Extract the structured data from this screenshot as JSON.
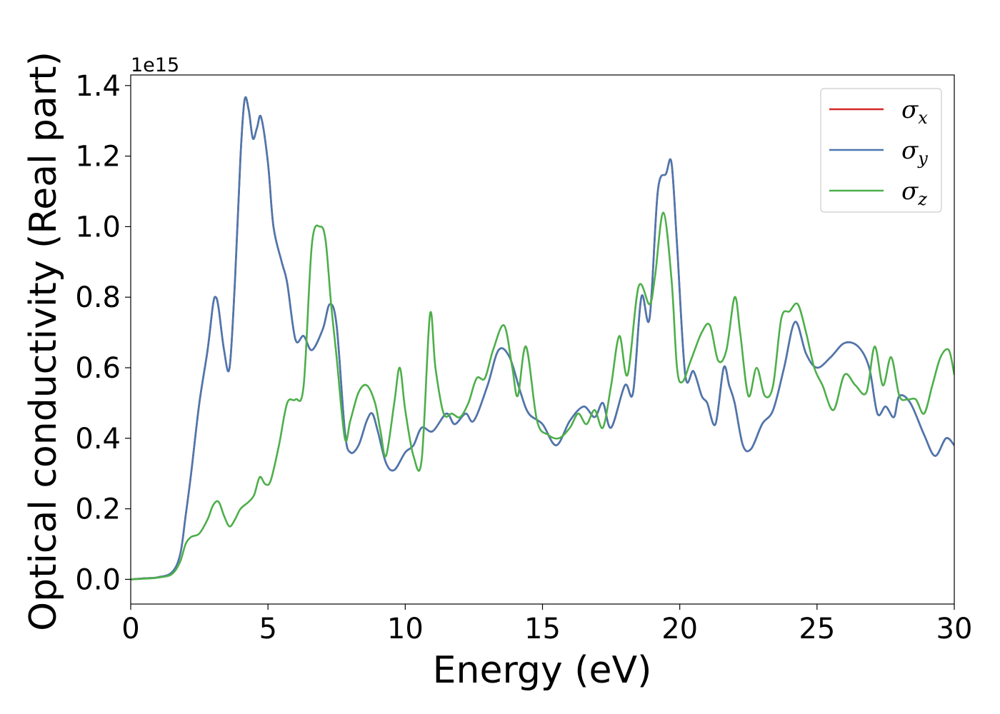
{
  "chart_data": {
    "type": "line",
    "title": "",
    "xlabel": "Energy (eV)",
    "ylabel": "Optical conductivity (Real part)",
    "y_offset_text": "1e15",
    "xlim": [
      0,
      30
    ],
    "ylim": [
      -0.07,
      1.43
    ],
    "xticks": [
      0,
      5,
      10,
      15,
      20,
      25,
      30
    ],
    "yticks": [
      0.0,
      0.2,
      0.4,
      0.6,
      0.8,
      1.0,
      1.2,
      1.4
    ],
    "xtick_labels": [
      "0",
      "5",
      "10",
      "15",
      "20",
      "25",
      "30"
    ],
    "ytick_labels": [
      "0.0",
      "0.2",
      "0.4",
      "0.6",
      "0.8",
      "1.0",
      "1.2",
      "1.4"
    ],
    "grid": false,
    "legend_position": "top-right",
    "series": [
      {
        "name": "σx",
        "legend_base": "σ",
        "legend_sub": "x",
        "color": "#d62728",
        "x": [
          0,
          0.5,
          1.0,
          1.5,
          1.8,
          2.0,
          2.2,
          2.5,
          2.8,
          3.0,
          3.1,
          3.2,
          3.4,
          3.6,
          3.8,
          4.0,
          4.15,
          4.3,
          4.45,
          4.6,
          4.75,
          5.0,
          5.2,
          5.5,
          5.7,
          6.0,
          6.3,
          6.6,
          7.0,
          7.25,
          7.5,
          7.8,
          8.0,
          8.3,
          8.6,
          8.8,
          9.0,
          9.3,
          9.6,
          10.0,
          10.3,
          10.6,
          11.0,
          11.5,
          11.8,
          12.2,
          12.5,
          13.0,
          13.4,
          13.8,
          14.2,
          14.5,
          15.0,
          15.5,
          16.0,
          16.5,
          16.9,
          17.2,
          17.5,
          18.0,
          18.3,
          18.6,
          18.9,
          19.2,
          19.5,
          19.7,
          19.9,
          20.2,
          20.5,
          20.8,
          21.0,
          21.3,
          21.6,
          21.8,
          22.0,
          22.3,
          22.6,
          23.0,
          23.4,
          23.8,
          24.2,
          24.6,
          25.0,
          25.5,
          26.0,
          26.5,
          26.9,
          27.2,
          27.5,
          27.8,
          28.0,
          28.4,
          28.9,
          29.3,
          29.7,
          30.0
        ],
        "y": [
          0.0,
          0.003,
          0.006,
          0.02,
          0.07,
          0.18,
          0.3,
          0.5,
          0.65,
          0.78,
          0.8,
          0.77,
          0.65,
          0.6,
          0.85,
          1.2,
          1.36,
          1.33,
          1.25,
          1.28,
          1.31,
          1.18,
          1.0,
          0.9,
          0.84,
          0.68,
          0.69,
          0.65,
          0.71,
          0.78,
          0.72,
          0.42,
          0.36,
          0.38,
          0.45,
          0.47,
          0.42,
          0.33,
          0.31,
          0.36,
          0.38,
          0.43,
          0.42,
          0.47,
          0.44,
          0.47,
          0.45,
          0.55,
          0.65,
          0.63,
          0.53,
          0.47,
          0.44,
          0.38,
          0.45,
          0.49,
          0.46,
          0.5,
          0.43,
          0.55,
          0.53,
          0.8,
          0.74,
          1.1,
          1.15,
          1.18,
          0.95,
          0.58,
          0.59,
          0.52,
          0.5,
          0.44,
          0.6,
          0.55,
          0.5,
          0.38,
          0.37,
          0.44,
          0.48,
          0.6,
          0.73,
          0.64,
          0.6,
          0.63,
          0.67,
          0.66,
          0.6,
          0.47,
          0.49,
          0.46,
          0.52,
          0.5,
          0.41,
          0.35,
          0.4,
          0.38
        ]
      },
      {
        "name": "σy",
        "legend_base": "σ",
        "legend_sub": "y",
        "color": "#4a78b0",
        "x": [
          0,
          0.5,
          1.0,
          1.5,
          1.8,
          2.0,
          2.2,
          2.5,
          2.8,
          3.0,
          3.1,
          3.2,
          3.4,
          3.6,
          3.8,
          4.0,
          4.15,
          4.3,
          4.45,
          4.6,
          4.75,
          5.0,
          5.2,
          5.5,
          5.7,
          6.0,
          6.3,
          6.6,
          7.0,
          7.25,
          7.5,
          7.8,
          8.0,
          8.3,
          8.6,
          8.8,
          9.0,
          9.3,
          9.6,
          10.0,
          10.3,
          10.6,
          11.0,
          11.5,
          11.8,
          12.2,
          12.5,
          13.0,
          13.4,
          13.8,
          14.2,
          14.5,
          15.0,
          15.5,
          16.0,
          16.5,
          16.9,
          17.2,
          17.5,
          18.0,
          18.3,
          18.6,
          18.9,
          19.2,
          19.5,
          19.7,
          19.9,
          20.2,
          20.5,
          20.8,
          21.0,
          21.3,
          21.6,
          21.8,
          22.0,
          22.3,
          22.6,
          23.0,
          23.4,
          23.8,
          24.2,
          24.6,
          25.0,
          25.5,
          26.0,
          26.5,
          26.9,
          27.2,
          27.5,
          27.8,
          28.0,
          28.4,
          28.9,
          29.3,
          29.7,
          30.0
        ],
        "y": [
          0.0,
          0.003,
          0.006,
          0.02,
          0.07,
          0.18,
          0.3,
          0.5,
          0.65,
          0.78,
          0.8,
          0.77,
          0.65,
          0.6,
          0.85,
          1.2,
          1.36,
          1.33,
          1.25,
          1.28,
          1.31,
          1.18,
          1.0,
          0.9,
          0.84,
          0.68,
          0.69,
          0.65,
          0.71,
          0.78,
          0.72,
          0.42,
          0.36,
          0.38,
          0.45,
          0.47,
          0.42,
          0.33,
          0.31,
          0.36,
          0.38,
          0.43,
          0.42,
          0.47,
          0.44,
          0.47,
          0.45,
          0.55,
          0.65,
          0.63,
          0.53,
          0.47,
          0.44,
          0.38,
          0.45,
          0.49,
          0.46,
          0.5,
          0.43,
          0.55,
          0.53,
          0.8,
          0.74,
          1.1,
          1.15,
          1.18,
          0.95,
          0.58,
          0.59,
          0.52,
          0.5,
          0.44,
          0.6,
          0.55,
          0.5,
          0.38,
          0.37,
          0.44,
          0.48,
          0.6,
          0.73,
          0.64,
          0.6,
          0.63,
          0.67,
          0.66,
          0.6,
          0.47,
          0.49,
          0.46,
          0.52,
          0.5,
          0.41,
          0.35,
          0.4,
          0.38
        ]
      },
      {
        "name": "σz",
        "legend_base": "σ",
        "legend_sub": "z",
        "color": "#4daf4a",
        "x": [
          0,
          0.5,
          1.0,
          1.5,
          1.8,
          2.0,
          2.2,
          2.5,
          2.8,
          3.0,
          3.2,
          3.4,
          3.6,
          3.8,
          4.0,
          4.3,
          4.5,
          4.7,
          4.9,
          5.1,
          5.4,
          5.7,
          6.0,
          6.3,
          6.6,
          6.9,
          7.1,
          7.3,
          7.5,
          7.8,
          8.0,
          8.3,
          8.6,
          8.9,
          9.1,
          9.3,
          9.6,
          9.8,
          10.0,
          10.3,
          10.6,
          10.9,
          11.1,
          11.4,
          11.7,
          12.0,
          12.3,
          12.6,
          12.9,
          13.2,
          13.6,
          13.9,
          14.1,
          14.4,
          14.8,
          15.2,
          15.6,
          16.0,
          16.3,
          16.6,
          16.9,
          17.2,
          17.5,
          17.8,
          18.1,
          18.5,
          18.9,
          19.1,
          19.4,
          19.7,
          19.9,
          20.1,
          20.4,
          20.8,
          21.1,
          21.4,
          21.7,
          22.0,
          22.2,
          22.5,
          22.8,
          23.1,
          23.4,
          23.7,
          24.0,
          24.3,
          24.6,
          24.9,
          25.2,
          25.6,
          26.0,
          26.4,
          26.8,
          27.1,
          27.4,
          27.7,
          28.0,
          28.3,
          28.6,
          28.9,
          29.2,
          29.5,
          29.8,
          30.0
        ],
        "y": [
          0.0,
          0.002,
          0.005,
          0.015,
          0.05,
          0.1,
          0.12,
          0.13,
          0.17,
          0.21,
          0.22,
          0.18,
          0.15,
          0.17,
          0.2,
          0.22,
          0.24,
          0.29,
          0.27,
          0.28,
          0.38,
          0.5,
          0.51,
          0.55,
          0.95,
          1.0,
          0.96,
          0.78,
          0.63,
          0.4,
          0.45,
          0.53,
          0.55,
          0.5,
          0.42,
          0.35,
          0.5,
          0.6,
          0.48,
          0.35,
          0.34,
          0.75,
          0.6,
          0.47,
          0.47,
          0.46,
          0.5,
          0.57,
          0.57,
          0.65,
          0.72,
          0.6,
          0.52,
          0.66,
          0.45,
          0.41,
          0.4,
          0.43,
          0.47,
          0.44,
          0.48,
          0.43,
          0.55,
          0.69,
          0.58,
          0.83,
          0.78,
          0.86,
          1.04,
          0.85,
          0.6,
          0.56,
          0.62,
          0.7,
          0.72,
          0.62,
          0.65,
          0.8,
          0.7,
          0.52,
          0.6,
          0.52,
          0.55,
          0.74,
          0.76,
          0.78,
          0.7,
          0.6,
          0.55,
          0.48,
          0.58,
          0.55,
          0.53,
          0.66,
          0.55,
          0.63,
          0.52,
          0.51,
          0.51,
          0.47,
          0.55,
          0.63,
          0.65,
          0.58
        ]
      }
    ]
  }
}
